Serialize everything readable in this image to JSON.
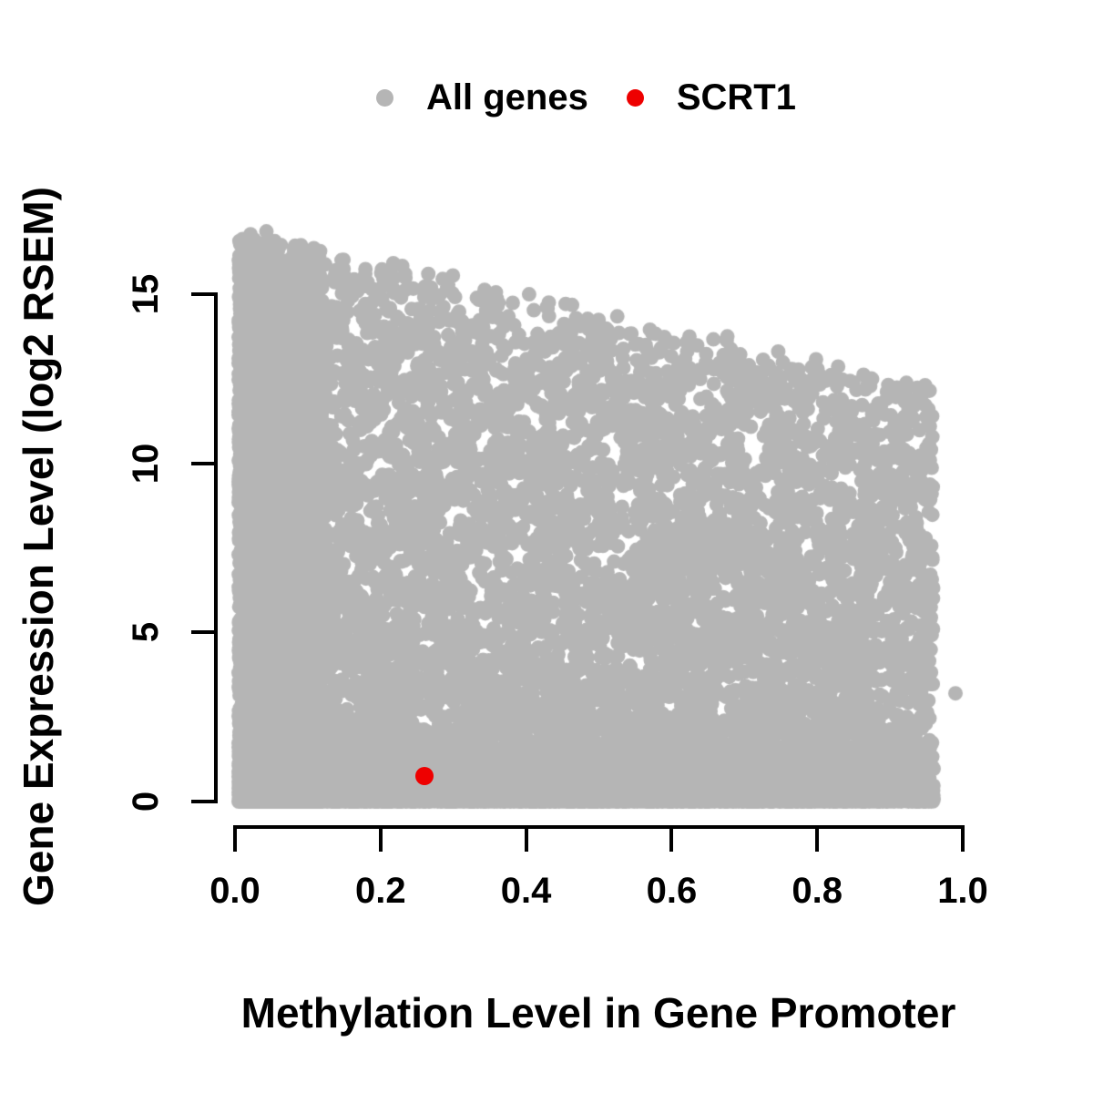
{
  "figure": {
    "background": "#ffffff",
    "legend": {
      "items": [
        {
          "label": "All genes",
          "color": "#b5b5b5"
        },
        {
          "label": "SCRT1",
          "color": "#ee0000"
        }
      ]
    },
    "x_axis": {
      "title": "Methylation Level in Gene Promoter",
      "tick_labels": [
        "0.0",
        "0.2",
        "0.4",
        "0.6",
        "0.8",
        "1.0"
      ],
      "tick_values": [
        0,
        0.2,
        0.4,
        0.6,
        0.8,
        1.0
      ],
      "range": [
        0,
        1
      ]
    },
    "y_axis": {
      "title": "Gene Expression Level (log2 RSEM)",
      "tick_labels": [
        "0",
        "5",
        "10",
        "15"
      ],
      "tick_values": [
        0,
        5,
        10,
        15
      ],
      "range": [
        0,
        15
      ]
    }
  },
  "chart_data": {
    "type": "scatter",
    "title": "",
    "xlabel": "Methylation Level in Gene Promoter",
    "ylabel": "Gene Expression Level (log2 RSEM)",
    "xlim": [
      0,
      1
    ],
    "ylim": [
      0,
      17
    ],
    "grid": false,
    "legend_position": "top-center",
    "x_tick_labels": [
      "0.0",
      "0.2",
      "0.4",
      "0.6",
      "0.8",
      "1.0"
    ],
    "y_tick_labels": [
      "0",
      "5",
      "10",
      "15"
    ],
    "series": [
      {
        "name": "All genes",
        "color": "#b5b5b5",
        "marker": "filled-circle",
        "marker_radius_px": 8,
        "n_points": 17000,
        "point_cloud": "dense overplotted cloud; expression upper envelope decreases from ~16.8 at methylation 0 to ~12 at methylation 0.95; very dense column at methylation < 0.12 spanning full expression range; solid band at expression ~0 across methylation 0-0.96",
        "distribution": {
          "seed": 20240521,
          "n": 17000,
          "x_left_frac": 0.3,
          "x_left_min": 0.005,
          "x_left_span": 0.115,
          "x_left_pow": 1.3,
          "x_body_min": 0.01,
          "x_body_span": 0.95,
          "x_body_pow": 1.15,
          "envelope_intercept": 16.7,
          "envelope_slope": -4.9,
          "envelope_jitter": 0.9,
          "y_zero_frac": 0.08,
          "y_band_frac": 0.26,
          "y_band_max": 1.7,
          "y_band_pow": 2.6,
          "y_body_pow": 1.45
        },
        "extra_points": [
          [
            0.99,
            3.2
          ]
        ]
      },
      {
        "name": "SCRT1",
        "color": "#ee0000",
        "marker": "filled-circle",
        "marker_radius_px": 10,
        "points": [
          [
            0.26,
            0.75
          ]
        ]
      }
    ]
  }
}
